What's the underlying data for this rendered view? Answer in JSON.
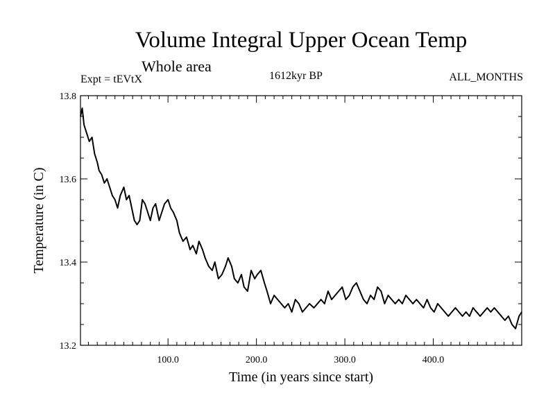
{
  "header": {
    "title": "Volume Integral Upper Ocean Temp",
    "subtitle": "Whole area",
    "experiment": "Expt = tEVtX",
    "period": "1612kyr BP",
    "months": "ALL_MONTHS"
  },
  "chart_data": {
    "type": "line",
    "title": "Volume Integral Upper Ocean Temp",
    "subtitle": "Whole area",
    "xlabel": "Time (in years since start)",
    "ylabel": "Temperature (in C)",
    "xlim": [
      1,
      500
    ],
    "ylim": [
      13.2,
      13.8
    ],
    "xticks": [
      100,
      200,
      300,
      400
    ],
    "xtick_labels": [
      "100.0",
      "200.0",
      "300.0",
      "400.0"
    ],
    "yticks": [
      13.2,
      13.4,
      13.6,
      13.8
    ],
    "ytick_labels": [
      "13.2",
      "13.4",
      "13.6",
      "13.8"
    ],
    "x_minor_step": 10,
    "y_minor_step": 0.05,
    "grid": false,
    "series": [
      {
        "name": "Volume integral upper ocean temperature",
        "x": [
          1,
          3,
          5,
          8,
          11,
          14,
          17,
          20,
          22,
          25,
          28,
          31,
          34,
          37,
          40,
          43,
          46,
          50,
          53,
          56,
          59,
          62,
          65,
          68,
          71,
          74,
          77,
          80,
          83,
          86,
          90,
          93,
          96,
          100,
          103,
          106,
          110,
          113,
          117,
          121,
          125,
          128,
          132,
          135,
          139,
          142,
          146,
          150,
          153,
          157,
          161,
          165,
          168,
          172,
          175,
          179,
          183,
          186,
          190,
          194,
          198,
          201,
          205,
          209,
          212,
          216,
          220,
          224,
          228,
          232,
          236,
          240,
          244,
          248,
          252,
          256,
          260,
          265,
          269,
          273,
          277,
          281,
          285,
          289,
          293,
          297,
          301,
          305,
          309,
          313,
          317,
          321,
          325,
          329,
          333,
          337,
          341,
          345,
          349,
          353,
          357,
          361,
          365,
          369,
          373,
          377,
          381,
          385,
          389,
          393,
          397,
          401,
          405,
          409,
          413,
          417,
          421,
          425,
          429,
          433,
          437,
          441,
          445,
          449,
          453,
          457,
          461,
          465,
          469,
          473,
          477,
          481,
          485,
          489,
          493,
          497,
          500
        ],
        "values": [
          13.75,
          13.77,
          13.73,
          13.71,
          13.69,
          13.7,
          13.66,
          13.64,
          13.62,
          13.61,
          13.59,
          13.6,
          13.58,
          13.56,
          13.55,
          13.53,
          13.56,
          13.58,
          13.55,
          13.56,
          13.53,
          13.5,
          13.49,
          13.5,
          13.55,
          13.54,
          13.52,
          13.5,
          13.53,
          13.54,
          13.5,
          13.52,
          13.54,
          13.55,
          13.53,
          13.52,
          13.5,
          13.47,
          13.45,
          13.46,
          13.43,
          13.44,
          13.42,
          13.45,
          13.43,
          13.41,
          13.39,
          13.38,
          13.4,
          13.36,
          13.37,
          13.39,
          13.41,
          13.39,
          13.36,
          13.35,
          13.37,
          13.34,
          13.33,
          13.38,
          13.36,
          13.37,
          13.38,
          13.35,
          13.33,
          13.3,
          13.32,
          13.31,
          13.3,
          13.29,
          13.3,
          13.28,
          13.31,
          13.3,
          13.28,
          13.29,
          13.3,
          13.29,
          13.3,
          13.31,
          13.3,
          13.33,
          13.31,
          13.32,
          13.33,
          13.34,
          13.31,
          13.32,
          13.34,
          13.35,
          13.33,
          13.31,
          13.3,
          13.32,
          13.31,
          13.34,
          13.33,
          13.3,
          13.32,
          13.31,
          13.3,
          13.31,
          13.3,
          13.32,
          13.31,
          13.3,
          13.31,
          13.3,
          13.29,
          13.31,
          13.29,
          13.28,
          13.3,
          13.29,
          13.28,
          13.27,
          13.28,
          13.29,
          13.28,
          13.27,
          13.28,
          13.27,
          13.29,
          13.28,
          13.27,
          13.28,
          13.29,
          13.28,
          13.29,
          13.28,
          13.27,
          13.26,
          13.27,
          13.25,
          13.24,
          13.27,
          13.28
        ]
      }
    ]
  }
}
